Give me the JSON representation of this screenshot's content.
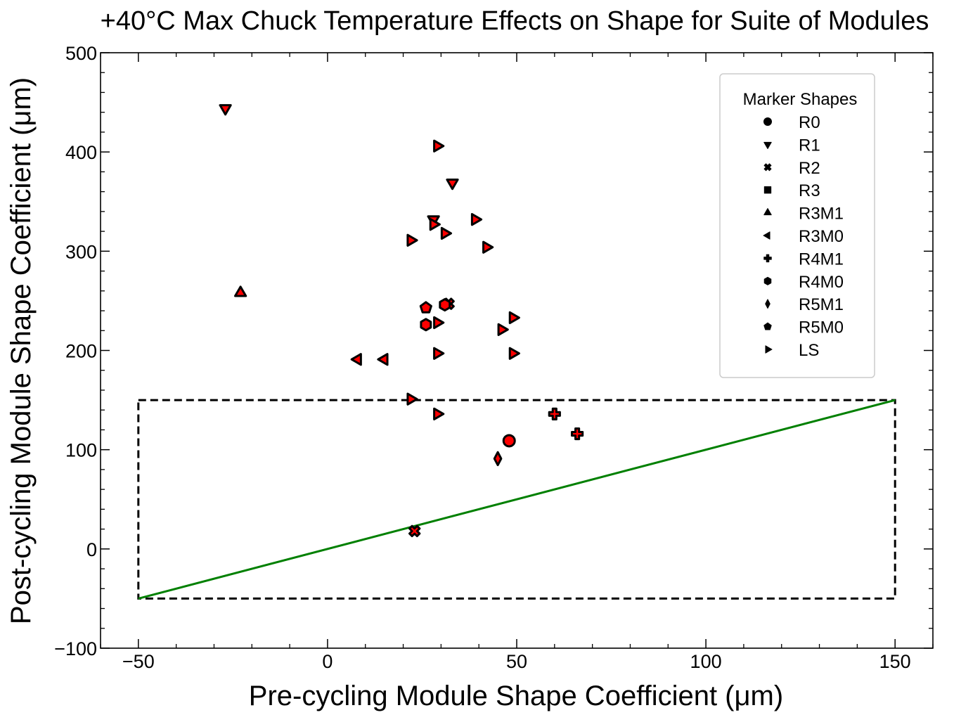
{
  "chart_data": {
    "type": "scatter",
    "title": "+40°C Max Chuck Temperature Effects on Shape for Suite of Modules",
    "xlabel": "Pre-cycling Module Shape Coefficient (μm)",
    "ylabel": "Post-cycling Module Shape Coefficient (μm)",
    "xlim": [
      -60,
      160
    ],
    "ylim": [
      -100,
      500
    ],
    "xticks": [
      -50,
      0,
      50,
      100,
      150
    ],
    "yticks": [
      -100,
      0,
      100,
      200,
      300,
      400,
      500
    ],
    "xtick_labels": [
      "−50",
      "0",
      "50",
      "100",
      "150"
    ],
    "ytick_labels": [
      "−100",
      "0",
      "100",
      "200",
      "300",
      "400",
      "500"
    ],
    "grid": false,
    "marker_face_color": "#ff0000",
    "marker_edge_color": "#000000",
    "legend": {
      "title": "Marker Shapes",
      "position": "top-right",
      "entries": [
        {
          "label": "R0",
          "marker": "circle"
        },
        {
          "label": "R1",
          "marker": "triangle-down"
        },
        {
          "label": "R2",
          "marker": "x"
        },
        {
          "label": "R3",
          "marker": "square"
        },
        {
          "label": "R3M1",
          "marker": "triangle-up"
        },
        {
          "label": "R3M0",
          "marker": "triangle-left"
        },
        {
          "label": "R4M1",
          "marker": "plus"
        },
        {
          "label": "R4M0",
          "marker": "hexagon"
        },
        {
          "label": "R5M1",
          "marker": "diamond"
        },
        {
          "label": "R5M0",
          "marker": "pentagon"
        },
        {
          "label": "LS",
          "marker": "triangle-right"
        }
      ]
    },
    "reference_line": {
      "label": "y = x",
      "color": "#008000",
      "from": [
        -50,
        -50
      ],
      "to": [
        150,
        150
      ]
    },
    "region_box": {
      "color": "#000000",
      "style": "dashed",
      "x": [
        -50,
        150
      ],
      "y": [
        -50,
        150
      ]
    },
    "series": [
      {
        "name": "R0",
        "marker": "circle",
        "points": [
          [
            48,
            109
          ]
        ]
      },
      {
        "name": "R1",
        "marker": "triangle-down",
        "points": [
          [
            -27,
            444
          ],
          [
            33,
            369
          ],
          [
            28,
            332
          ]
        ]
      },
      {
        "name": "R2",
        "marker": "x",
        "points": [
          [
            32,
            247
          ],
          [
            23,
            18
          ]
        ]
      },
      {
        "name": "R3",
        "marker": "square",
        "points": []
      },
      {
        "name": "R3M1",
        "marker": "triangle-up",
        "points": [
          [
            -23,
            258
          ]
        ]
      },
      {
        "name": "R3M0",
        "marker": "triangle-left",
        "points": [
          [
            8,
            191
          ],
          [
            15,
            191
          ]
        ]
      },
      {
        "name": "R4M1",
        "marker": "plus",
        "points": [
          [
            60,
            136
          ],
          [
            66,
            116
          ]
        ]
      },
      {
        "name": "R4M0",
        "marker": "hexagon",
        "points": [
          [
            26,
            226
          ],
          [
            31,
            246
          ]
        ]
      },
      {
        "name": "R5M1",
        "marker": "diamond",
        "points": [
          [
            45,
            91
          ]
        ]
      },
      {
        "name": "R5M0",
        "marker": "pentagon",
        "points": [
          [
            26,
            243
          ]
        ]
      },
      {
        "name": "LS",
        "marker": "triangle-right",
        "points": [
          [
            29,
            406
          ],
          [
            28,
            327
          ],
          [
            31,
            318
          ],
          [
            39,
            332
          ],
          [
            22,
            311
          ],
          [
            42,
            304
          ],
          [
            49,
            233
          ],
          [
            29,
            228
          ],
          [
            46,
            221
          ],
          [
            29,
            197
          ],
          [
            49,
            197
          ],
          [
            22,
            151
          ],
          [
            29,
            136
          ]
        ]
      }
    ]
  }
}
